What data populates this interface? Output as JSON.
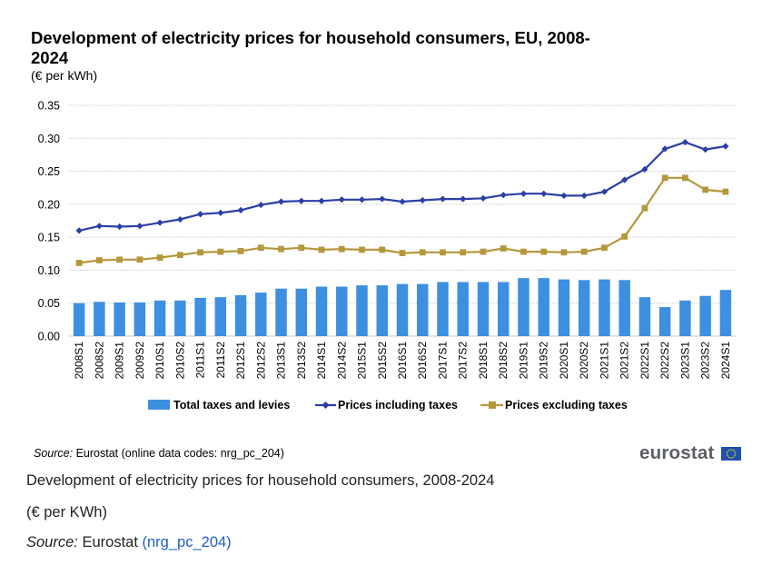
{
  "chart": {
    "title": "Development of electricity prices for household consumers, EU, 2008-2024",
    "unit_label": "(€ per kWh)",
    "source_label": "Source:",
    "source_text": "Eurostat (online data codes: nrg_pc_204)",
    "logo_text": "eurostat"
  },
  "caption": {
    "title": "Development of electricity prices for household consumers, 2008-2024",
    "unit": "(€ per KWh)",
    "source_label": "Source:",
    "source_text": "Eurostat",
    "source_code": "(nrg_pc_204)"
  },
  "colors": {
    "bars": "#3d8fe0",
    "incl_line": "#2b3fa6",
    "excl_line": "#b5973c",
    "grid": "#c8c8c8",
    "logo_gray": "#5b5f63",
    "flag_blue": "#1f4fb0",
    "flag_star": "#ffdd00"
  },
  "chart_data": {
    "type": "bar+line",
    "categories": [
      "2008S1",
      "2008S2",
      "2009S1",
      "2009S2",
      "2010S1",
      "2010S2",
      "2011S1",
      "2011S2",
      "2012S1",
      "2012S2",
      "2013S1",
      "2013S2",
      "2014S1",
      "2014S2",
      "2015S1",
      "2015S2",
      "2016S1",
      "2016S2",
      "2017S1",
      "2017S2",
      "2018S1",
      "2018S2",
      "2019S1",
      "2019S2",
      "2020S1",
      "2020S2",
      "2021S1",
      "2021S2",
      "2022S1",
      "2022S2",
      "2023S1",
      "2023S2",
      "2024S1"
    ],
    "ylim": [
      0,
      0.35
    ],
    "yticks": [
      "0.00",
      "0.05",
      "0.10",
      "0.15",
      "0.20",
      "0.25",
      "0.30",
      "0.35"
    ],
    "grid": true,
    "legend_position": "bottom",
    "series": [
      {
        "name": "Total taxes and levies",
        "type": "bar",
        "values": [
          0.05,
          0.052,
          0.051,
          0.051,
          0.054,
          0.054,
          0.058,
          0.059,
          0.062,
          0.066,
          0.072,
          0.072,
          0.075,
          0.075,
          0.077,
          0.077,
          0.079,
          0.079,
          0.082,
          0.082,
          0.082,
          0.082,
          0.088,
          0.088,
          0.086,
          0.085,
          0.086,
          0.085,
          0.059,
          0.044,
          0.054,
          0.061,
          0.07
        ]
      },
      {
        "name": "Prices including taxes",
        "type": "line",
        "values": [
          0.16,
          0.167,
          0.166,
          0.167,
          0.172,
          0.177,
          0.185,
          0.187,
          0.191,
          0.199,
          0.204,
          0.205,
          0.205,
          0.207,
          0.207,
          0.208,
          0.204,
          0.206,
          0.208,
          0.208,
          0.209,
          0.214,
          0.216,
          0.216,
          0.213,
          0.213,
          0.219,
          0.237,
          0.253,
          0.284,
          0.294,
          0.283,
          0.288
        ]
      },
      {
        "name": "Prices excluding taxes",
        "type": "line",
        "values": [
          0.111,
          0.115,
          0.116,
          0.116,
          0.119,
          0.123,
          0.127,
          0.128,
          0.129,
          0.134,
          0.132,
          0.134,
          0.131,
          0.132,
          0.131,
          0.131,
          0.126,
          0.127,
          0.127,
          0.127,
          0.128,
          0.133,
          0.128,
          0.128,
          0.127,
          0.128,
          0.134,
          0.151,
          0.194,
          0.24,
          0.24,
          0.222,
          0.219
        ]
      }
    ]
  }
}
